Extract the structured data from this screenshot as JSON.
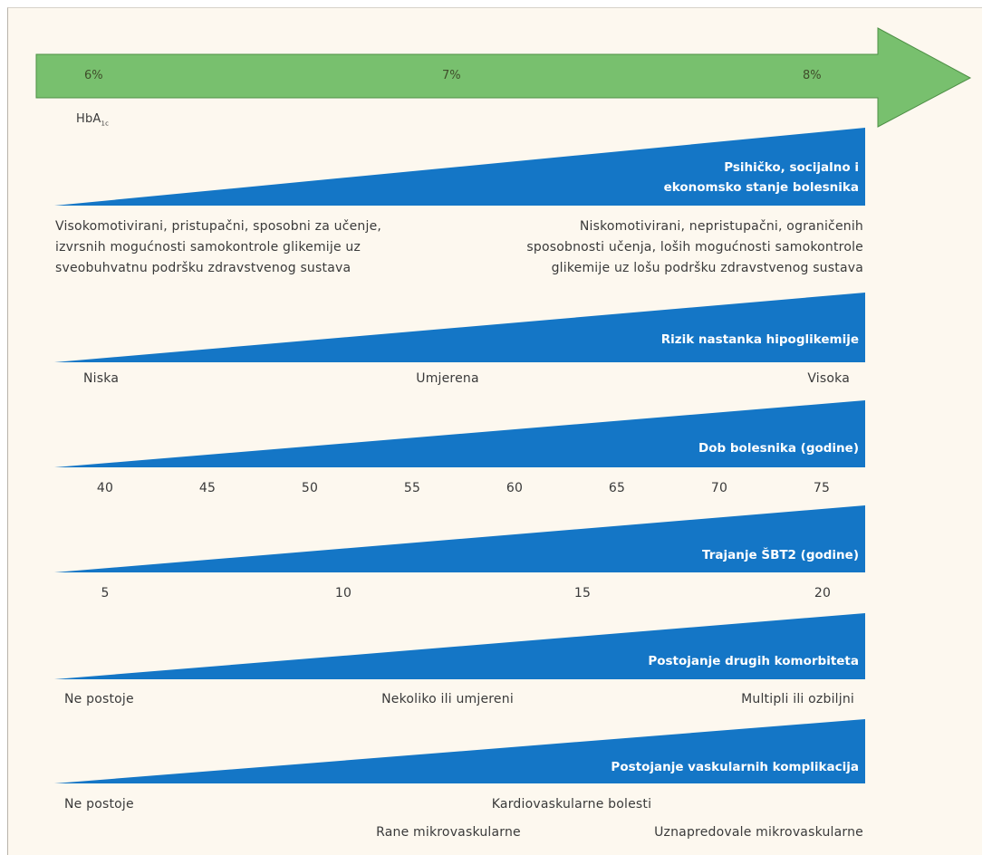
{
  "colors": {
    "arrow": "#78c06e",
    "wedge": "#1476c6",
    "background": "#fdf8ef"
  },
  "arrow": {
    "ticks": [
      "6%",
      "7%",
      "8%"
    ],
    "label": "HbA",
    "label_sub": "1c"
  },
  "psych": {
    "title_line1": "Psihičko, socijalno i",
    "title_line2": "ekonomsko stanje bolesnika",
    "left": [
      "Visokomotivirani, pristupačni, sposobni za učenje,",
      "izvrsnih mogućnosti samokontrole glikemije uz",
      "sveobuhvatnu podršku zdravstvenog sustava"
    ],
    "right": [
      "Niskomotivirani, nepristupačni, ograničenih",
      "sposobnosti učenja, loših mogućnosti samokontrole",
      "glikemije uz lošu podršku zdravstvenog sustava"
    ]
  },
  "hypo": {
    "title": "Rizik nastanka hipoglikemije",
    "labels": [
      "Niska",
      "Umjerena",
      "Visoka"
    ]
  },
  "age": {
    "title": "Dob bolesnika (godine)",
    "ticks": [
      "40",
      "45",
      "50",
      "55",
      "60",
      "65",
      "70",
      "75"
    ]
  },
  "duration": {
    "title": "Trajanje ŠBT2 (godine)",
    "ticks": [
      "5",
      "10",
      "15",
      "20"
    ]
  },
  "comorb": {
    "title": "Postojanje drugih komorbiteta",
    "labels": [
      "Ne postoje",
      "Nekoliko ili umjereni",
      "Multipli ili ozbiljni"
    ]
  },
  "vasc": {
    "title": "Postojanje vaskularnih komplikacija",
    "left": "Ne postoje",
    "middle": "Kardiovaskularne bolesti",
    "bottom_left": "Rane mikrovaskularne",
    "bottom_right": "Uznapredovale mikrovaskularne"
  }
}
